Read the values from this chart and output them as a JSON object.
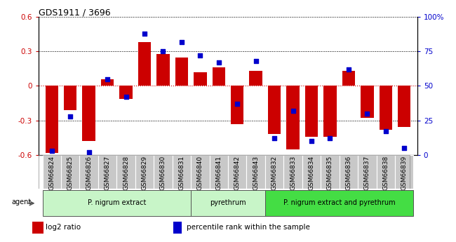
{
  "title": "GDS1911 / 3696",
  "samples": [
    "GSM66824",
    "GSM66825",
    "GSM66826",
    "GSM66827",
    "GSM66828",
    "GSM66829",
    "GSM66830",
    "GSM66831",
    "GSM66840",
    "GSM66841",
    "GSM66842",
    "GSM66843",
    "GSM66832",
    "GSM66833",
    "GSM66834",
    "GSM66835",
    "GSM66836",
    "GSM66837",
    "GSM66838",
    "GSM66839"
  ],
  "log2_ratio": [
    -0.58,
    -0.21,
    -0.48,
    0.06,
    -0.11,
    0.38,
    0.28,
    0.25,
    0.12,
    0.16,
    -0.33,
    0.13,
    -0.42,
    -0.55,
    -0.44,
    -0.44,
    0.13,
    -0.28,
    -0.38,
    -0.36
  ],
  "percentile_rank": [
    3,
    28,
    2,
    55,
    42,
    88,
    75,
    82,
    72,
    67,
    37,
    68,
    12,
    32,
    10,
    12,
    62,
    30,
    17,
    5
  ],
  "group_configs": [
    {
      "label": "P. nigrum extract",
      "start": 0,
      "end": 7,
      "color": "#c8f5c8"
    },
    {
      "label": "pyrethrum",
      "start": 8,
      "end": 11,
      "color": "#c8f5c8"
    },
    {
      "label": "P. nigrum extract and pyrethrum",
      "start": 12,
      "end": 19,
      "color": "#44dd44"
    }
  ],
  "ylim_left": [
    -0.6,
    0.6
  ],
  "ylim_right": [
    0,
    100
  ],
  "bar_color": "#CC0000",
  "dot_color": "#0000CC",
  "hline_zero_color": "#CC0000",
  "hline_other_color": "#333333",
  "tick_bg": "#C8C8C8",
  "legend_bar": "log2 ratio",
  "legend_dot": "percentile rank within the sample",
  "left_yticks": [
    -0.6,
    -0.3,
    0.0,
    0.3,
    0.6
  ],
  "left_yticklabels": [
    "-0.6",
    "-0.3",
    "0",
    "0.3",
    "0.6"
  ],
  "right_yticks": [
    0,
    25,
    50,
    75,
    100
  ],
  "right_yticklabels": [
    "0",
    "25",
    "50",
    "75",
    "100%"
  ]
}
